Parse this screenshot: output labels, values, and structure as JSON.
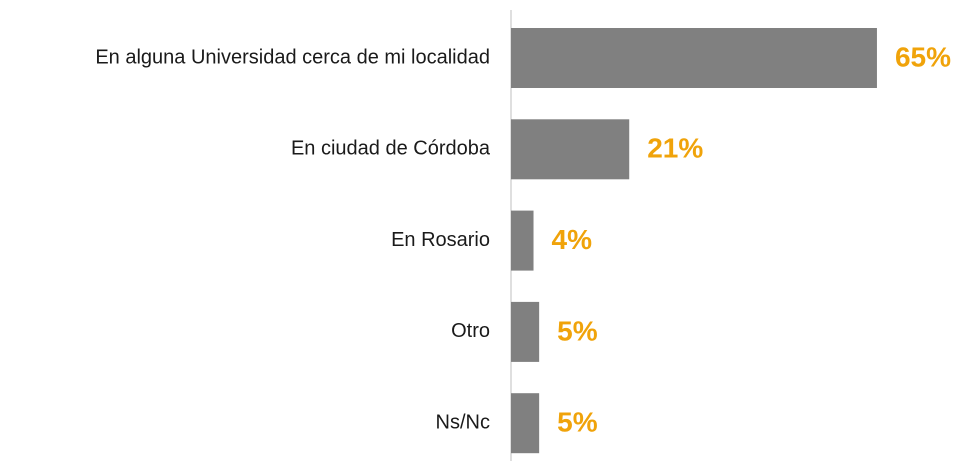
{
  "chart_data": {
    "type": "bar",
    "orientation": "horizontal",
    "categories": [
      "En alguna Universidad cerca de mi localidad",
      "En ciudad de Córdoba",
      "En Rosario",
      "Otro",
      "Ns/Nc"
    ],
    "values": [
      65,
      21,
      4,
      5,
      5
    ],
    "value_labels": [
      "65%",
      "21%",
      "4%",
      "5%",
      "5%"
    ],
    "color": "#808080",
    "label_color": "#f0a30a"
  }
}
